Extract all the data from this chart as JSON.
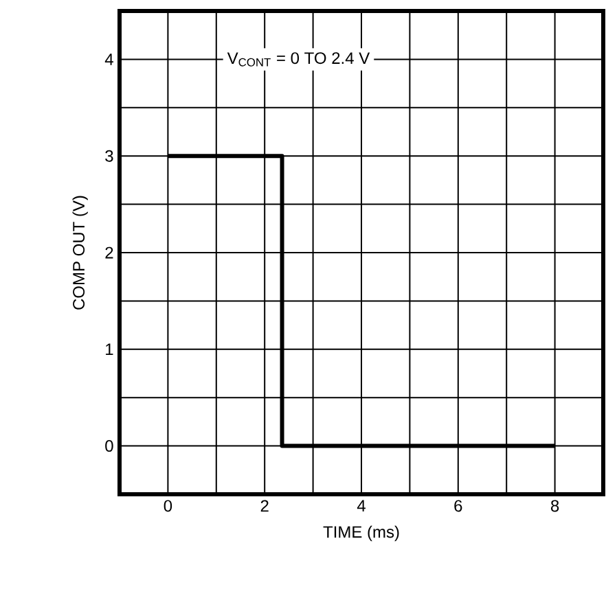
{
  "chart_data": {
    "type": "step",
    "xlabel": "TIME (ms)",
    "ylabel": "COMP OUT (V)",
    "x": [
      0,
      2.36,
      8
    ],
    "values": [
      3,
      0,
      0
    ],
    "color": "#000000",
    "xlim": [
      -1,
      9
    ],
    "ylim": [
      -0.5,
      4.5
    ],
    "xticks": [
      {
        "value": -1,
        "label": null
      },
      0,
      {
        "value": 1,
        "label": null
      },
      2,
      {
        "value": 3,
        "label": null
      },
      4,
      {
        "value": 5,
        "label": null
      },
      6,
      {
        "value": 7,
        "label": null
      },
      8,
      {
        "value": 9,
        "label": null
      }
    ],
    "yticks": [
      {
        "value": -0.5,
        "label": null
      },
      0,
      {
        "value": 0.5,
        "label": null
      },
      1,
      {
        "value": 1.5,
        "label": null
      },
      2,
      {
        "value": 2.5,
        "label": null
      },
      3,
      {
        "value": 3.5,
        "label": null
      },
      4,
      {
        "value": 4.5,
        "label": null
      }
    ],
    "grid": true,
    "marker": "none",
    "line_style": "solid",
    "annotations": [
      "V$_{CONT}$ = 0 TO 2.4 V"
    ]
  }
}
